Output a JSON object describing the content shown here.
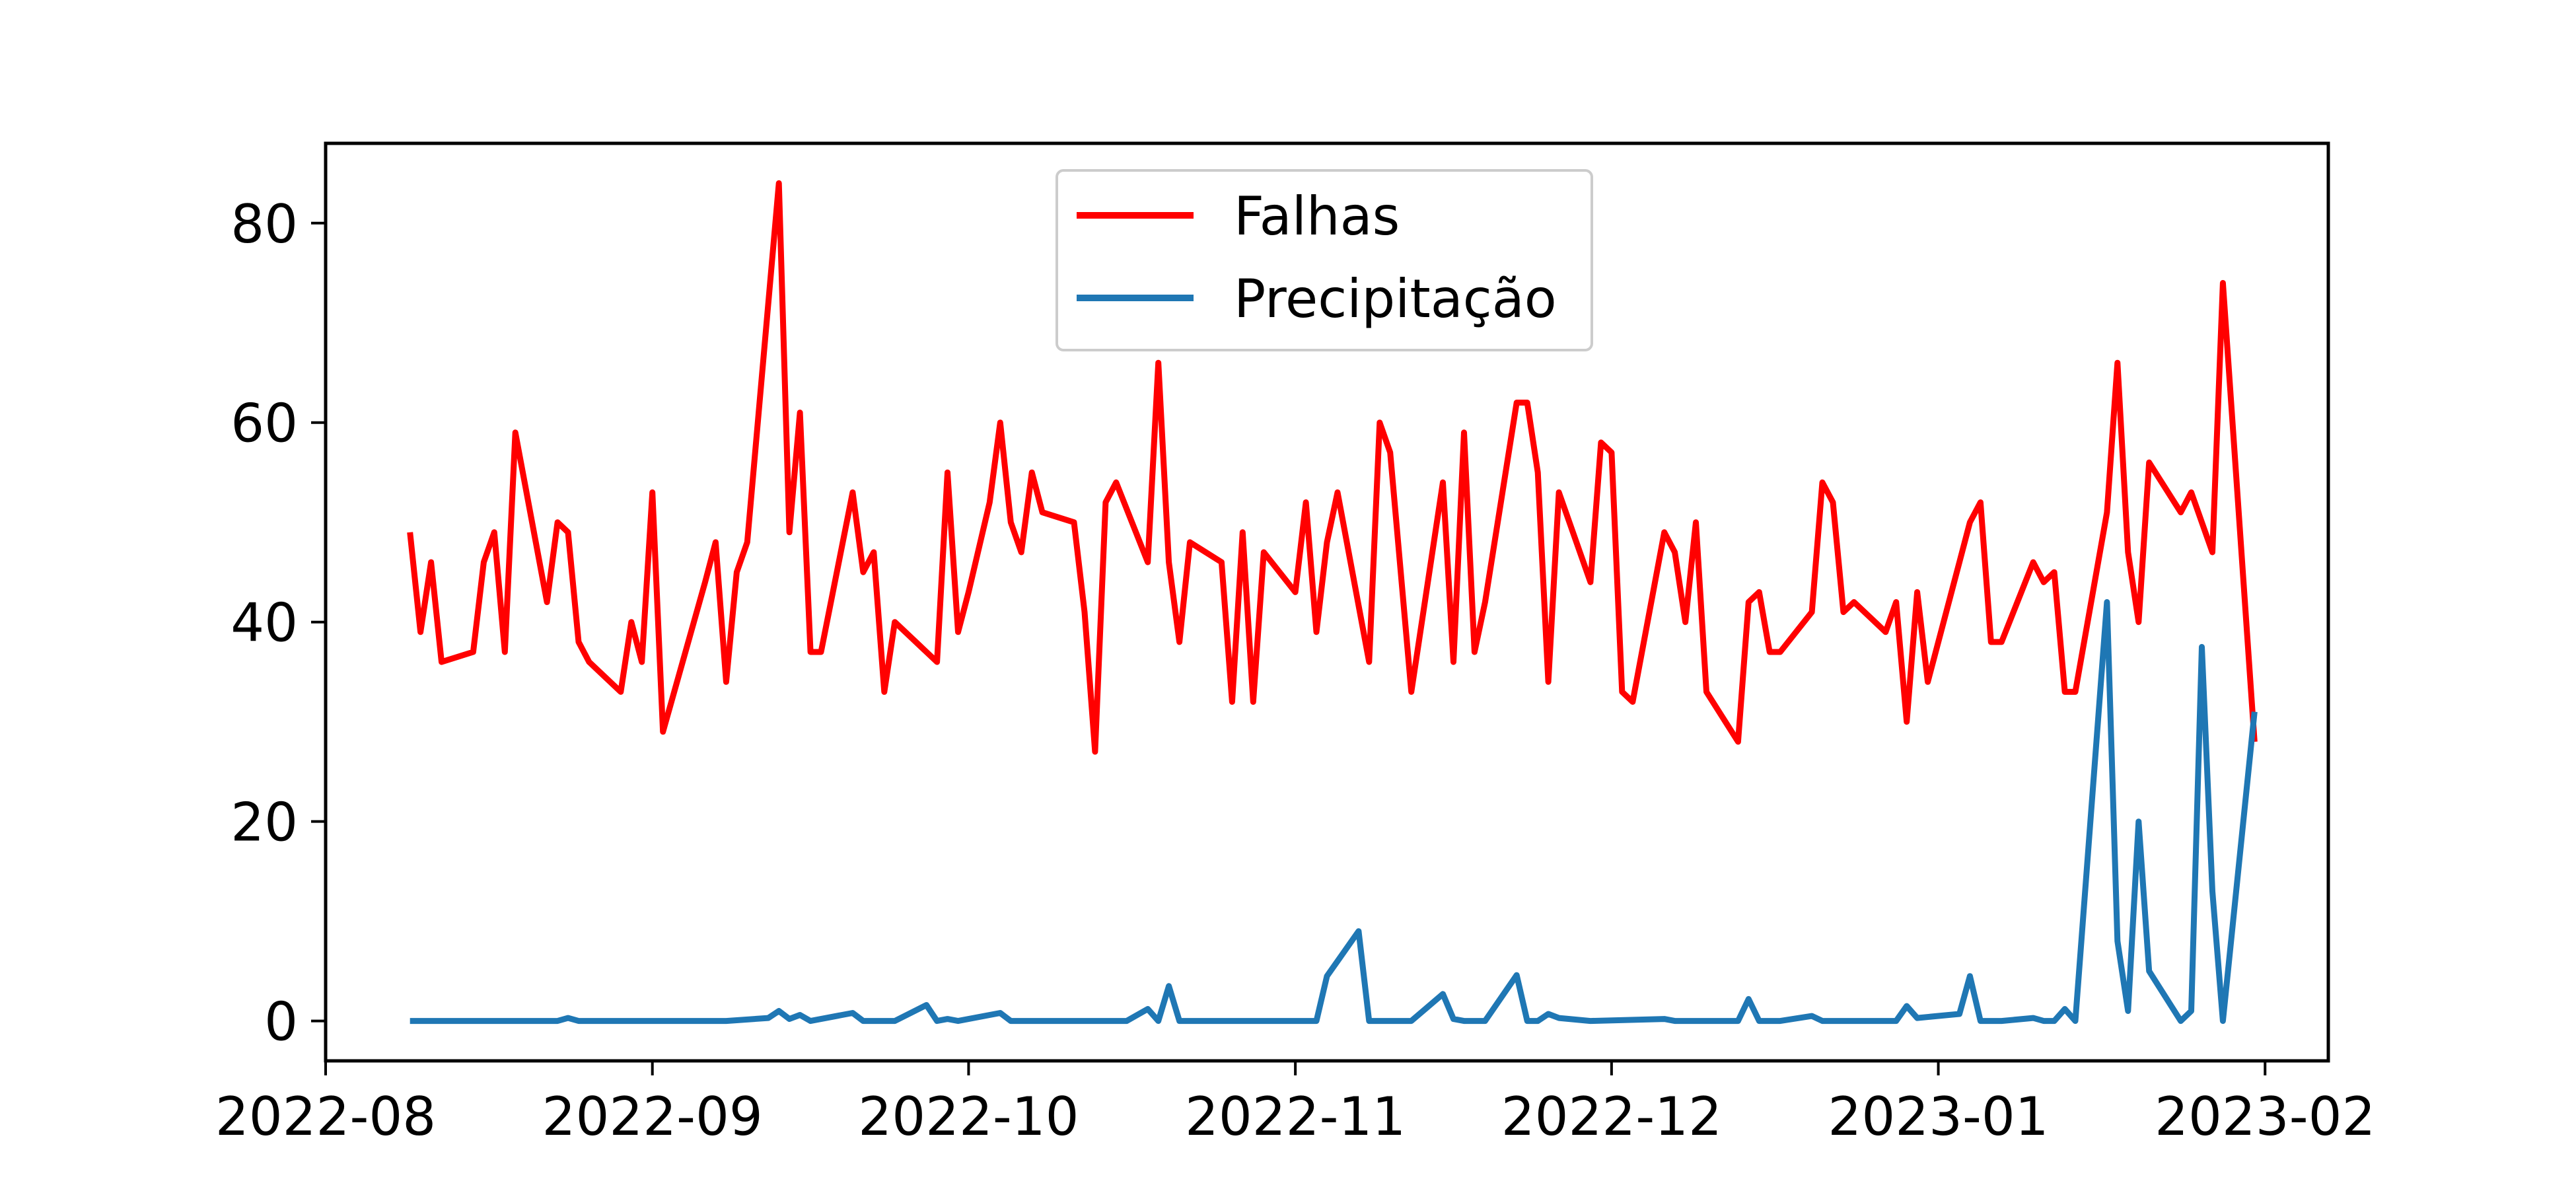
{
  "chart_data": {
    "type": "line",
    "title": "",
    "xlabel": "",
    "ylabel": "",
    "xlim": [
      "2022-08-01",
      "2023-02-07"
    ],
    "ylim": [
      -4,
      88
    ],
    "grid": false,
    "legend_position": "top-center",
    "x_ticks": [
      "2022-08",
      "2022-09",
      "2022-10",
      "2022-11",
      "2022-12",
      "2023-01",
      "2023-02"
    ],
    "x_tick_dates": [
      "2022-08-01",
      "2022-09-01",
      "2022-10-01",
      "2022-11-01",
      "2022-12-01",
      "2023-01-01",
      "2023-02-01"
    ],
    "y_ticks": [
      "0",
      "20",
      "40",
      "60",
      "80"
    ],
    "y_tick_values": [
      0,
      20,
      40,
      60,
      80
    ],
    "series": [
      {
        "name": "Falhas",
        "color": "#ff0000",
        "points": [
          [
            "2022-08-09",
            49
          ],
          [
            "2022-08-10",
            39
          ],
          [
            "2022-08-11",
            46
          ],
          [
            "2022-08-12",
            36
          ],
          [
            "2022-08-15",
            37
          ],
          [
            "2022-08-16",
            46
          ],
          [
            "2022-08-17",
            49
          ],
          [
            "2022-08-18",
            37
          ],
          [
            "2022-08-19",
            59
          ],
          [
            "2022-08-22",
            42
          ],
          [
            "2022-08-23",
            50
          ],
          [
            "2022-08-24",
            49
          ],
          [
            "2022-08-25",
            38
          ],
          [
            "2022-08-26",
            36
          ],
          [
            "2022-08-29",
            33
          ],
          [
            "2022-08-30",
            40
          ],
          [
            "2022-08-31",
            36
          ],
          [
            "2022-09-01",
            53
          ],
          [
            "2022-09-02",
            29
          ],
          [
            "2022-09-06",
            44
          ],
          [
            "2022-09-07",
            48
          ],
          [
            "2022-09-08",
            34
          ],
          [
            "2022-09-09",
            45
          ],
          [
            "2022-09-10",
            48
          ],
          [
            "2022-09-13",
            84
          ],
          [
            "2022-09-14",
            49
          ],
          [
            "2022-09-15",
            61
          ],
          [
            "2022-09-16",
            37
          ],
          [
            "2022-09-17",
            37
          ],
          [
            "2022-09-20",
            53
          ],
          [
            "2022-09-21",
            45
          ],
          [
            "2022-09-22",
            47
          ],
          [
            "2022-09-23",
            33
          ],
          [
            "2022-09-24",
            40
          ],
          [
            "2022-09-28",
            36
          ],
          [
            "2022-09-29",
            55
          ],
          [
            "2022-09-30",
            39
          ],
          [
            "2022-10-01",
            43
          ],
          [
            "2022-10-03",
            52
          ],
          [
            "2022-10-04",
            60
          ],
          [
            "2022-10-05",
            50
          ],
          [
            "2022-10-06",
            47
          ],
          [
            "2022-10-07",
            55
          ],
          [
            "2022-10-08",
            51
          ],
          [
            "2022-10-11",
            50
          ],
          [
            "2022-10-12",
            41
          ],
          [
            "2022-10-13",
            27
          ],
          [
            "2022-10-14",
            52
          ],
          [
            "2022-10-15",
            54
          ],
          [
            "2022-10-18",
            46
          ],
          [
            "2022-10-19",
            66
          ],
          [
            "2022-10-20",
            46
          ],
          [
            "2022-10-21",
            38
          ],
          [
            "2022-10-22",
            48
          ],
          [
            "2022-10-25",
            46
          ],
          [
            "2022-10-26",
            32
          ],
          [
            "2022-10-27",
            49
          ],
          [
            "2022-10-28",
            32
          ],
          [
            "2022-10-29",
            47
          ],
          [
            "2022-11-01",
            43
          ],
          [
            "2022-11-02",
            52
          ],
          [
            "2022-11-03",
            39
          ],
          [
            "2022-11-04",
            48
          ],
          [
            "2022-11-05",
            53
          ],
          [
            "2022-11-08",
            36
          ],
          [
            "2022-11-09",
            60
          ],
          [
            "2022-11-10",
            57
          ],
          [
            "2022-11-12",
            33
          ],
          [
            "2022-11-15",
            54
          ],
          [
            "2022-11-16",
            36
          ],
          [
            "2022-11-17",
            59
          ],
          [
            "2022-11-18",
            37
          ],
          [
            "2022-11-19",
            42
          ],
          [
            "2022-11-22",
            62
          ],
          [
            "2022-11-23",
            62
          ],
          [
            "2022-11-24",
            55
          ],
          [
            "2022-11-25",
            34
          ],
          [
            "2022-11-26",
            53
          ],
          [
            "2022-11-29",
            44
          ],
          [
            "2022-11-30",
            58
          ],
          [
            "2022-12-01",
            57
          ],
          [
            "2022-12-02",
            33
          ],
          [
            "2022-12-03",
            32
          ],
          [
            "2022-12-06",
            49
          ],
          [
            "2022-12-07",
            47
          ],
          [
            "2022-12-08",
            40
          ],
          [
            "2022-12-09",
            50
          ],
          [
            "2022-12-10",
            33
          ],
          [
            "2022-12-13",
            28
          ],
          [
            "2022-12-14",
            42
          ],
          [
            "2022-12-15",
            43
          ],
          [
            "2022-12-16",
            37
          ],
          [
            "2022-12-17",
            37
          ],
          [
            "2022-12-20",
            41
          ],
          [
            "2022-12-21",
            54
          ],
          [
            "2022-12-22",
            52
          ],
          [
            "2022-12-23",
            41
          ],
          [
            "2022-12-24",
            42
          ],
          [
            "2022-12-27",
            39
          ],
          [
            "2022-12-28",
            42
          ],
          [
            "2022-12-29",
            30
          ],
          [
            "2022-12-30",
            43
          ],
          [
            "2022-12-31",
            34
          ],
          [
            "2023-01-03",
            46
          ],
          [
            "2023-01-04",
            50
          ],
          [
            "2023-01-05",
            52
          ],
          [
            "2023-01-06",
            38
          ],
          [
            "2023-01-07",
            38
          ],
          [
            "2023-01-10",
            46
          ],
          [
            "2023-01-11",
            44
          ],
          [
            "2023-01-12",
            45
          ],
          [
            "2023-01-13",
            33
          ],
          [
            "2023-01-14",
            33
          ],
          [
            "2023-01-17",
            51
          ],
          [
            "2023-01-18",
            66
          ],
          [
            "2023-01-19",
            47
          ],
          [
            "2023-01-20",
            40
          ],
          [
            "2023-01-21",
            56
          ],
          [
            "2023-01-24",
            51
          ],
          [
            "2023-01-25",
            53
          ],
          [
            "2023-01-27",
            47
          ],
          [
            "2023-01-28",
            74
          ],
          [
            "2023-01-31",
            28
          ]
        ]
      },
      {
        "name": "Precipitação",
        "color": "#1f77b4",
        "points": [
          [
            "2022-08-09",
            0
          ],
          [
            "2022-08-23",
            0
          ],
          [
            "2022-08-24",
            0.3
          ],
          [
            "2022-08-25",
            0
          ],
          [
            "2022-09-08",
            0
          ],
          [
            "2022-09-12",
            0.3
          ],
          [
            "2022-09-13",
            1
          ],
          [
            "2022-09-14",
            0.2
          ],
          [
            "2022-09-15",
            0.6
          ],
          [
            "2022-09-16",
            0
          ],
          [
            "2022-09-19",
            0.6
          ],
          [
            "2022-09-20",
            0.8
          ],
          [
            "2022-09-21",
            0
          ],
          [
            "2022-09-24",
            0
          ],
          [
            "2022-09-27",
            1.6
          ],
          [
            "2022-09-28",
            0
          ],
          [
            "2022-09-29",
            0.2
          ],
          [
            "2022-09-30",
            0
          ],
          [
            "2022-10-04",
            0.8
          ],
          [
            "2022-10-05",
            0
          ],
          [
            "2022-10-13",
            0
          ],
          [
            "2022-10-16",
            0
          ],
          [
            "2022-10-18",
            1.2
          ],
          [
            "2022-10-19",
            0
          ],
          [
            "2022-10-20",
            3.5
          ],
          [
            "2022-10-21",
            0
          ],
          [
            "2022-11-02",
            0
          ],
          [
            "2022-11-03",
            0
          ],
          [
            "2022-11-04",
            4.5
          ],
          [
            "2022-11-07",
            9
          ],
          [
            "2022-11-08",
            0
          ],
          [
            "2022-11-12",
            0
          ],
          [
            "2022-11-15",
            2.7
          ],
          [
            "2022-11-16",
            0.2
          ],
          [
            "2022-11-17",
            0
          ],
          [
            "2022-11-19",
            0
          ],
          [
            "2022-11-22",
            4.6
          ],
          [
            "2022-11-23",
            0
          ],
          [
            "2022-11-24",
            0
          ],
          [
            "2022-11-25",
            0.7
          ],
          [
            "2022-11-26",
            0.3
          ],
          [
            "2022-11-29",
            0
          ],
          [
            "2022-12-06",
            0.2
          ],
          [
            "2022-12-07",
            0
          ],
          [
            "2022-12-13",
            0
          ],
          [
            "2022-12-14",
            2.2
          ],
          [
            "2022-12-15",
            0
          ],
          [
            "2022-12-17",
            0
          ],
          [
            "2022-12-20",
            0.5
          ],
          [
            "2022-12-21",
            0
          ],
          [
            "2022-12-28",
            0
          ],
          [
            "2022-12-29",
            1.5
          ],
          [
            "2022-12-30",
            0.3
          ],
          [
            "2023-01-02",
            0.6
          ],
          [
            "2023-01-03",
            0.7
          ],
          [
            "2023-01-04",
            4.5
          ],
          [
            "2023-01-05",
            0
          ],
          [
            "2023-01-07",
            0
          ],
          [
            "2023-01-10",
            0.3
          ],
          [
            "2023-01-11",
            0
          ],
          [
            "2023-01-12",
            0
          ],
          [
            "2023-01-13",
            1.2
          ],
          [
            "2023-01-14",
            0
          ],
          [
            "2023-01-17",
            42
          ],
          [
            "2023-01-18",
            8
          ],
          [
            "2023-01-19",
            1
          ],
          [
            "2023-01-20",
            20
          ],
          [
            "2023-01-21",
            5
          ],
          [
            "2023-01-24",
            0
          ],
          [
            "2023-01-25",
            1
          ],
          [
            "2023-01-26",
            37.5
          ],
          [
            "2023-01-27",
            13
          ],
          [
            "2023-01-28",
            0
          ],
          [
            "2023-01-31",
            31
          ]
        ]
      }
    ]
  }
}
